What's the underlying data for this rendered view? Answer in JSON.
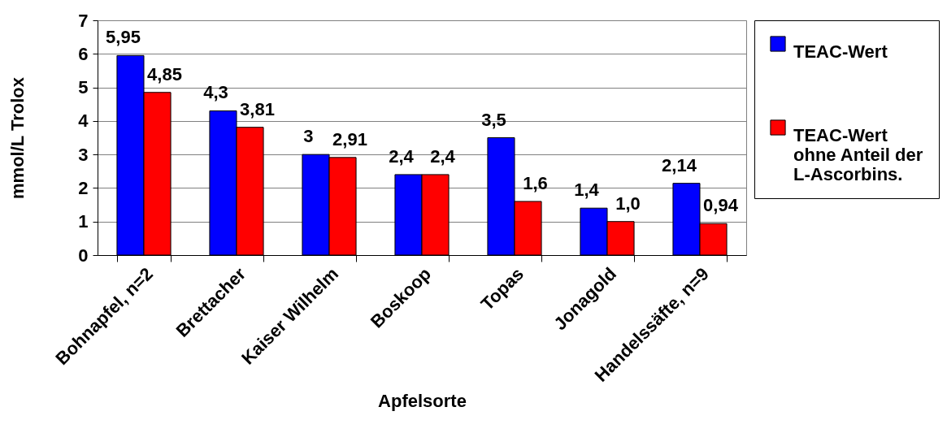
{
  "chart_data": {
    "type": "bar",
    "categories": [
      "Bohnapfel, n=2",
      "Brettacher",
      "Kaiser Wilhelm",
      "Boskoop",
      "Topas",
      "Jonagold",
      "Handelssäfte, n=9"
    ],
    "series": [
      {
        "name": "TEAC-Wert",
        "color": "#0000ff",
        "values": [
          5.95,
          4.3,
          3,
          2.4,
          3.5,
          1.4,
          2.14
        ],
        "value_labels": [
          "5,95",
          "4,3",
          "3",
          "2,4",
          "3,5",
          "1,4",
          "2,14"
        ]
      },
      {
        "name": "TEAC-Wert ohne Anteil der L-Ascorbins.",
        "color": "#ff0000",
        "values": [
          4.85,
          3.81,
          2.91,
          2.4,
          1.6,
          1.0,
          0.94
        ],
        "value_labels": [
          "4,85",
          "3,81",
          "2,91",
          "2,4",
          "1,6",
          "1,0",
          "0,94"
        ]
      }
    ],
    "xlabel": "Apfelsorte",
    "ylabel": "mmol/L Trolox",
    "ylim": [
      0,
      7
    ],
    "yticks": [
      0,
      1,
      2,
      3,
      4,
      5,
      6,
      7
    ],
    "grid": "y",
    "legend": "right"
  }
}
